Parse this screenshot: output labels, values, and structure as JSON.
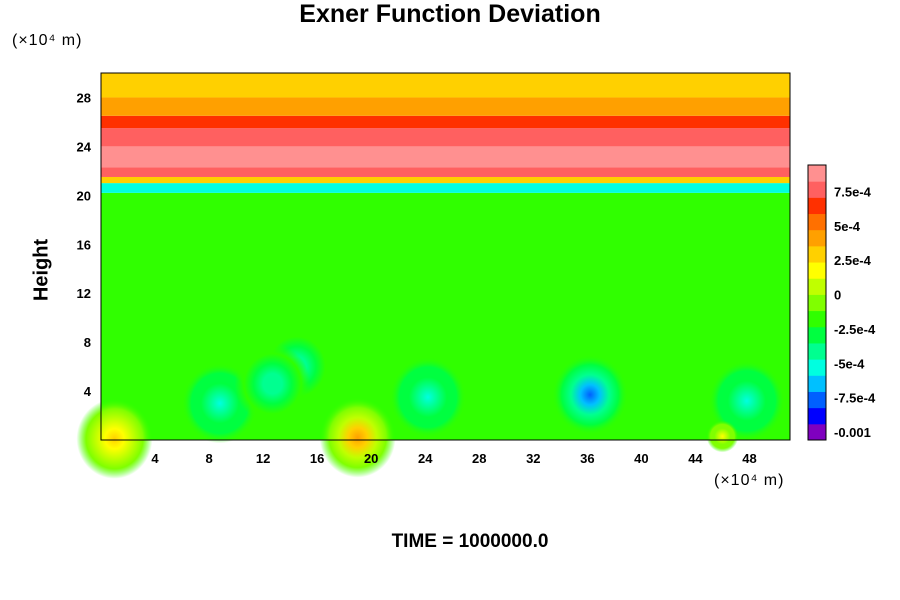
{
  "chart_data": {
    "type": "heatmap",
    "title": "Exner Function Deviation",
    "ylabel": "Height",
    "xlabel": "",
    "y_unit": "(×10⁴ m)",
    "x_unit": "(×10⁴ m)",
    "footer": "TIME = 1000000.0",
    "xlim": [
      0,
      51
    ],
    "ylim": [
      0,
      30
    ],
    "x_ticks": [
      4,
      8,
      12,
      16,
      20,
      24,
      28,
      32,
      36,
      40,
      44,
      48
    ],
    "y_ticks": [
      4,
      8,
      12,
      16,
      20,
      24,
      28
    ],
    "colorbar": {
      "range": [
        -0.001,
        0.001
      ],
      "tick_values": [
        0.00075,
        0.0005,
        0.00025,
        0,
        -0.00025,
        -0.0005,
        -0.00075,
        -0.001
      ],
      "tick_labels": [
        "7.5e-4",
        "5e-4",
        "2.5e-4",
        "0",
        "-2.5e-4",
        "-5e-4",
        "-7.5e-4",
        "-0.001"
      ],
      "colors": [
        "#7f00bf",
        "#0000ff",
        "#0060ff",
        "#00c0ff",
        "#00ffe0",
        "#00ff90",
        "#00ff40",
        "#30ff00",
        "#80ff00",
        "#c0ff00",
        "#ffff00",
        "#ffd000",
        "#ffa000",
        "#ff7000",
        "#ff3000",
        "#ff6060",
        "#ff9090"
      ]
    },
    "horizontal_bands": [
      {
        "y_from": 0,
        "y_to": 20.2,
        "value": -0.0001
      },
      {
        "y_from": 20.2,
        "y_to": 21.0,
        "value": -0.00045
      },
      {
        "y_from": 21.0,
        "y_to": 21.5,
        "value": 0.0003
      },
      {
        "y_from": 21.5,
        "y_to": 22.3,
        "value": 0.00085
      },
      {
        "y_from": 22.3,
        "y_to": 24.0,
        "value": 0.00095
      },
      {
        "y_from": 24.0,
        "y_to": 25.5,
        "value": 0.0008
      },
      {
        "y_from": 25.5,
        "y_to": 26.5,
        "value": 0.00065
      },
      {
        "y_from": 26.5,
        "y_to": 28.0,
        "value": 0.00045
      },
      {
        "y_from": 28.0,
        "y_to": 30.0,
        "value": 0.00032
      }
    ],
    "anomalies": [
      {
        "x": 8.8,
        "y": 3.0,
        "value": -0.00045
      },
      {
        "x": 24.2,
        "y": 3.5,
        "value": -0.00045
      },
      {
        "x": 36.2,
        "y": 3.7,
        "value": -0.0007
      },
      {
        "x": 47.8,
        "y": 3.2,
        "value": -0.00045
      },
      {
        "x": 14.5,
        "y": 6.0,
        "value": -0.0004
      },
      {
        "x": 12.7,
        "y": 4.6,
        "value": -0.0004
      },
      {
        "x": 19.0,
        "y": 0.2,
        "value": 0.00045
      },
      {
        "x": 1.0,
        "y": 0.1,
        "value": 0.0004
      },
      {
        "x": 46.0,
        "y": 0.3,
        "value": 0.0002
      }
    ]
  }
}
